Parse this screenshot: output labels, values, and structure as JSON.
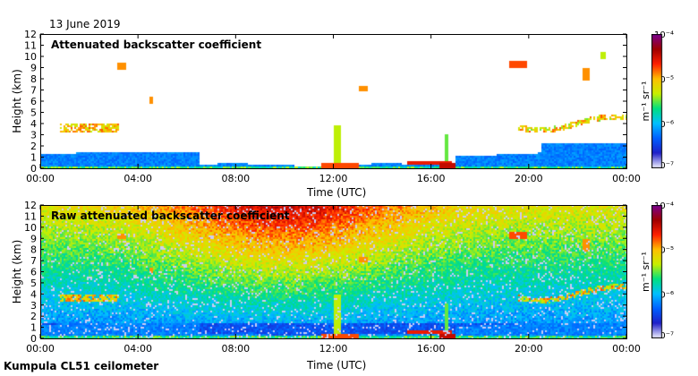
{
  "header": {
    "date": "13 June 2019"
  },
  "footer": {
    "site": "Kumpula CL51 ceilometer"
  },
  "colors": {
    "colormap": [
      "#f2f2ff",
      "#2020c8",
      "#0060ff",
      "#00c0ff",
      "#00e080",
      "#c8f000",
      "#ffc000",
      "#ff2000",
      "#a00000",
      "#7a0090"
    ]
  },
  "chart_data": [
    {
      "type": "heatmap",
      "title": "Attenuated backscatter coefficient",
      "xlabel": "Time (UTC)",
      "ylabel": "Height (km)",
      "x_ticks": [
        "00:00",
        "04:00",
        "08:00",
        "12:00",
        "16:00",
        "20:00",
        "00:00"
      ],
      "y_ticks": [
        "0",
        "1",
        "2",
        "3",
        "4",
        "5",
        "6",
        "7",
        "8",
        "9",
        "10",
        "11",
        "12"
      ],
      "ylim": [
        0,
        12
      ],
      "xlim_hours": [
        0,
        24
      ],
      "colorbar": {
        "label": "m⁻¹ sr⁻¹",
        "scale": "log",
        "min_label": "10⁻⁷",
        "max_label": "10⁻⁴",
        "ticks": [
          "10⁻⁴",
          "10⁻⁵",
          "10⁻⁶",
          "10⁻⁷"
        ]
      }
    },
    {
      "type": "heatmap",
      "title": "Raw attenuated backscatter coefficient",
      "xlabel": "Time (UTC)",
      "ylabel": "Height (km)",
      "x_ticks": [
        "00:00",
        "04:00",
        "08:00",
        "12:00",
        "16:00",
        "20:00",
        "00:00"
      ],
      "y_ticks": [
        "0",
        "1",
        "2",
        "3",
        "4",
        "5",
        "6",
        "7",
        "8",
        "9",
        "10",
        "11",
        "12"
      ],
      "ylim": [
        0,
        12
      ],
      "xlim_hours": [
        0,
        24
      ],
      "colorbar": {
        "label": "m⁻¹ sr⁻¹",
        "scale": "log",
        "min_label": "10⁻⁷",
        "max_label": "10⁻⁴",
        "ticks": [
          "10⁻⁴",
          "10⁻⁵",
          "10⁻⁶",
          "10⁻⁷"
        ]
      }
    }
  ]
}
